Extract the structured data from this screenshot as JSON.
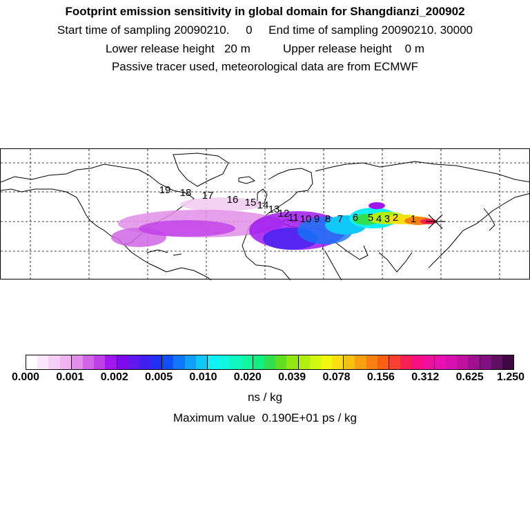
{
  "header": {
    "title": "Footprint emission sensitivity in global domain for Shangdianzi_200902",
    "line2": "Start time of sampling 20090210.     0     End time of sampling 20090210. 30000",
    "line3": "Lower release height   20 m          Upper release height    0 m",
    "line4": "Passive tracer used, meteorological data are from ECMWF"
  },
  "map": {
    "station_marker": "station-cross",
    "day_labels": [
      "19",
      "18",
      "17",
      "16",
      "15",
      "14",
      "13",
      "12",
      "11",
      "10",
      "9",
      "8",
      "7",
      "6",
      "5",
      "4",
      "3",
      "2",
      "1"
    ]
  },
  "colorbar": {
    "tick_labels": [
      "0.000",
      "0.001",
      "0.002",
      "0.005",
      "0.010",
      "0.020",
      "0.039",
      "0.078",
      "0.156",
      "0.312",
      "0.625",
      "1.250"
    ],
    "colors": [
      "#ffffff",
      "#fbe6fb",
      "#f5cdf5",
      "#efb4ef",
      "#e08ee8",
      "#d066e6",
      "#c040e8",
      "#a018ee",
      "#8008ee",
      "#6018ee",
      "#4020f0",
      "#2030f4",
      "#1050f8",
      "#1078f8",
      "#10a0f8",
      "#10c8f8",
      "#10f0f8",
      "#10f8e0",
      "#10f8c0",
      "#10f8a0",
      "#10f080",
      "#30e050",
      "#60e020",
      "#90e810",
      "#b0f010",
      "#d0f810",
      "#f0f810",
      "#f8e010",
      "#f8c010",
      "#f8a010",
      "#f88010",
      "#f86010",
      "#f84030",
      "#f82050",
      "#f81080",
      "#f010a0",
      "#e810b0",
      "#d810b0",
      "#c010a0",
      "#a01090",
      "#801080",
      "#601060",
      "#400840"
    ],
    "unit": "ns / kg"
  },
  "max_value": "Maximum value  0.190E+01 ps / kg"
}
